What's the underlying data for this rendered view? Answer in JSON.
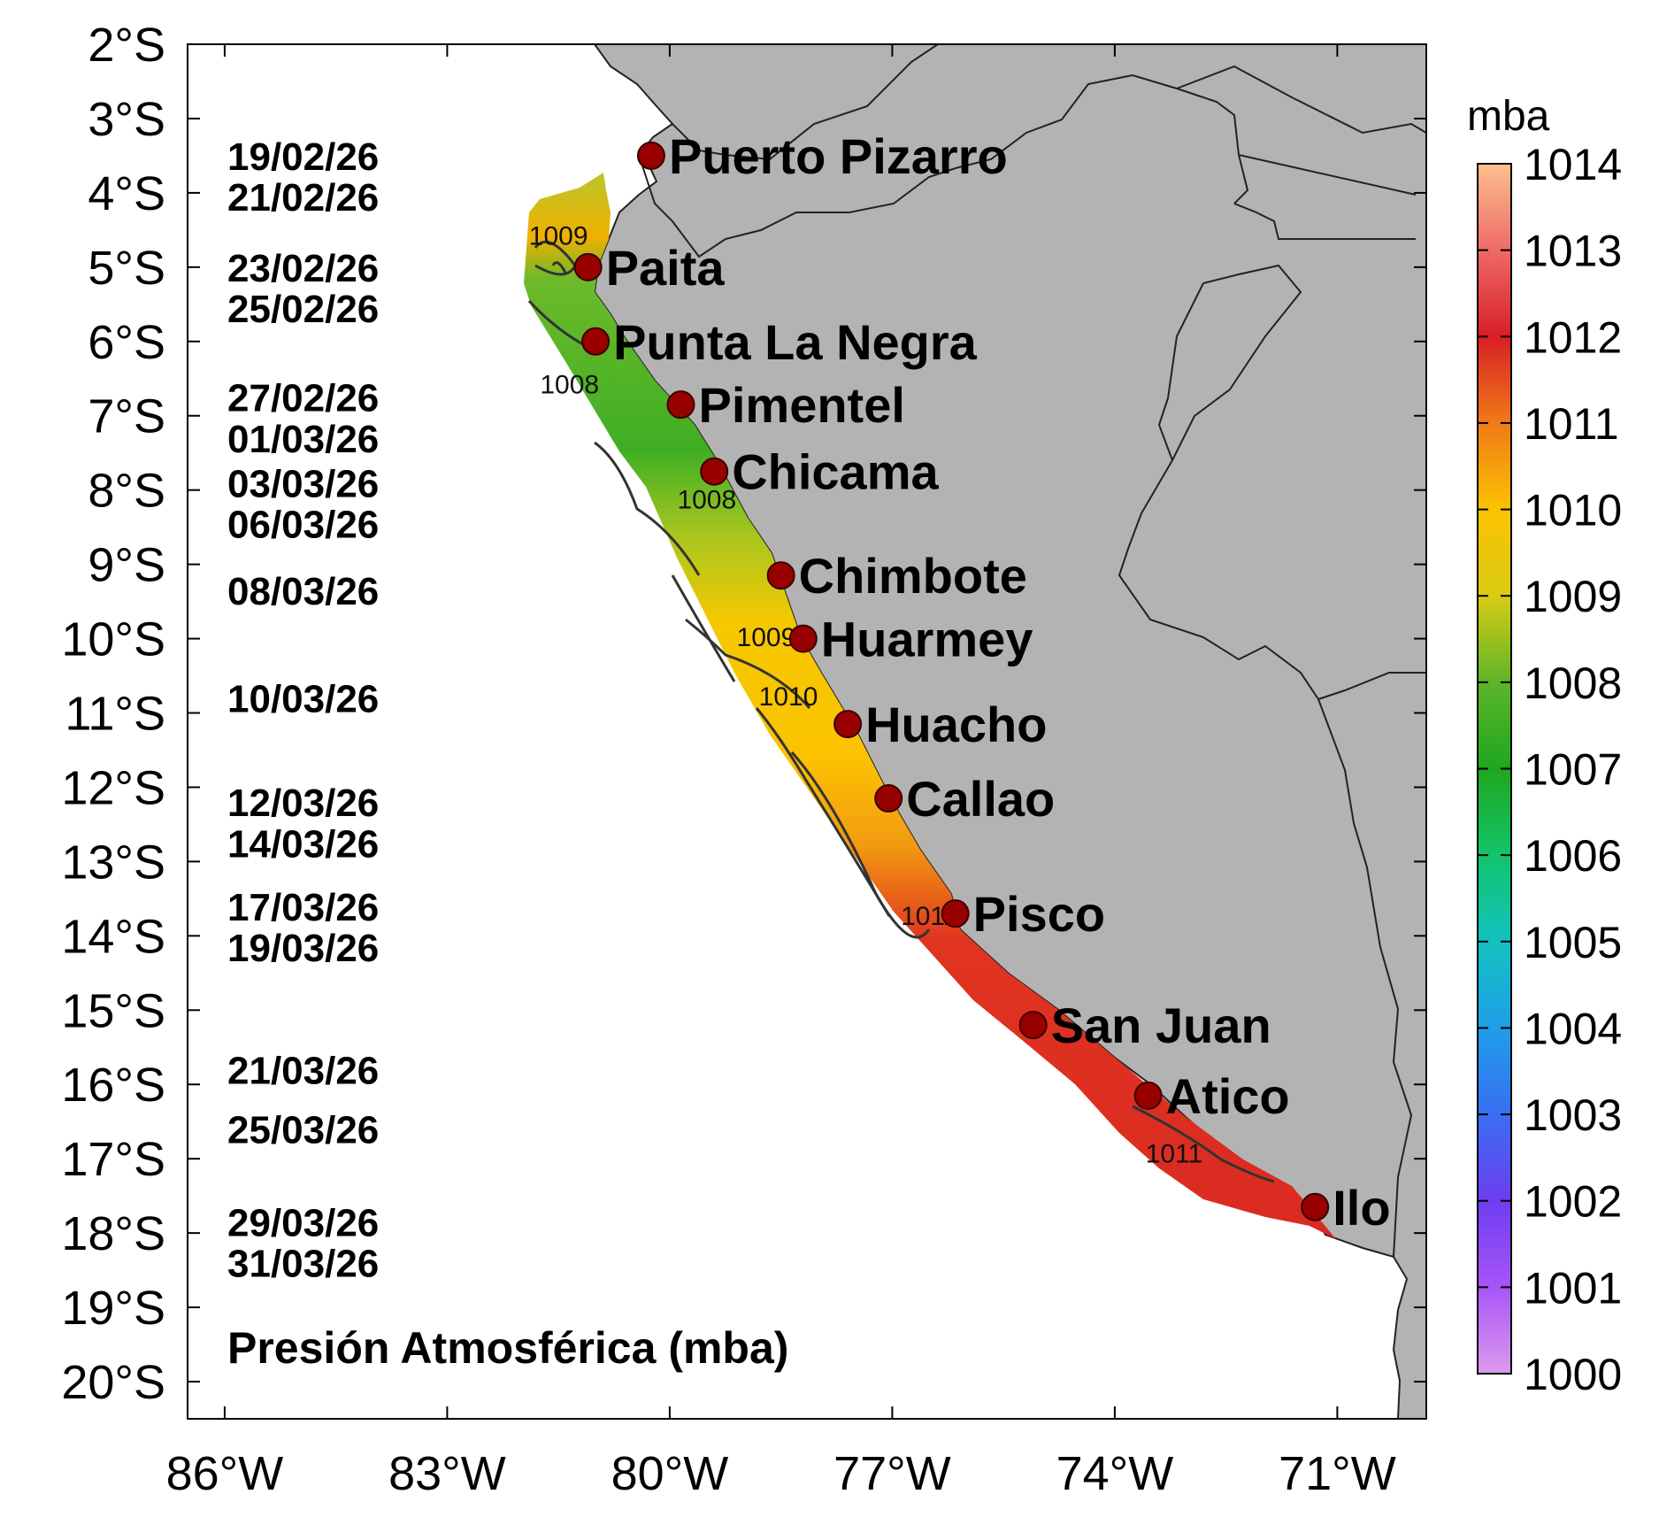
{
  "map": {
    "title": "Presión Atmosférica (mba)",
    "lon_ticks": [
      {
        "lon": -86,
        "label": "86°W"
      },
      {
        "lon": -83,
        "label": "83°W"
      },
      {
        "lon": -80,
        "label": "80°W"
      },
      {
        "lon": -77,
        "label": "77°W"
      },
      {
        "lon": -74,
        "label": "74°W"
      },
      {
        "lon": -71,
        "label": "71°W"
      }
    ],
    "lat_ticks": [
      {
        "lat": -2,
        "label": "2°S"
      },
      {
        "lat": -3,
        "label": "3°S"
      },
      {
        "lat": -4,
        "label": "4°S"
      },
      {
        "lat": -5,
        "label": "5°S"
      },
      {
        "lat": -6,
        "label": "6°S"
      },
      {
        "lat": -7,
        "label": "7°S"
      },
      {
        "lat": -8,
        "label": "8°S"
      },
      {
        "lat": -9,
        "label": "9°S"
      },
      {
        "lat": -10,
        "label": "10°S"
      },
      {
        "lat": -11,
        "label": "11°S"
      },
      {
        "lat": -12,
        "label": "12°S"
      },
      {
        "lat": -13,
        "label": "13°S"
      },
      {
        "lat": -14,
        "label": "14°S"
      },
      {
        "lat": -15,
        "label": "15°S"
      },
      {
        "lat": -16,
        "label": "16°S"
      },
      {
        "lat": -17,
        "label": "17°S"
      },
      {
        "lat": -18,
        "label": "18°S"
      },
      {
        "lat": -19,
        "label": "19°S"
      },
      {
        "lat": -20,
        "label": "20°S"
      }
    ],
    "lon_range": [
      -86.5,
      -69.8
    ],
    "lat_range": [
      -20.5,
      -2.0
    ],
    "land_color": "#b3b3b3",
    "station_color": "#990000"
  },
  "dates": [
    {
      "text": "19/02/26",
      "lat": -3.5
    },
    {
      "text": "21/02/26",
      "lat": -4.05
    },
    {
      "text": "23/02/26",
      "lat": -5.0
    },
    {
      "text": "25/02/26",
      "lat": -5.55
    },
    {
      "text": "27/02/26",
      "lat": -6.75
    },
    {
      "text": "01/03/26",
      "lat": -7.3
    },
    {
      "text": "03/03/26",
      "lat": -7.9
    },
    {
      "text": "06/03/26",
      "lat": -8.45
    },
    {
      "text": "08/03/26",
      "lat": -9.35
    },
    {
      "text": "10/03/26",
      "lat": -10.8
    },
    {
      "text": "12/03/26",
      "lat": -12.2
    },
    {
      "text": "14/03/26",
      "lat": -12.75
    },
    {
      "text": "17/03/26",
      "lat": -13.6
    },
    {
      "text": "19/03/26",
      "lat": -14.15
    },
    {
      "text": "21/03/26",
      "lat": -15.8
    },
    {
      "text": "25/03/26",
      "lat": -16.6
    },
    {
      "text": "29/03/26",
      "lat": -17.85
    },
    {
      "text": "31/03/26",
      "lat": -18.4
    }
  ],
  "stations": [
    {
      "name": "Puerto Pizarro",
      "lon": -80.25,
      "lat": -3.5
    },
    {
      "name": "Paita",
      "lon": -81.1,
      "lat": -5.0
    },
    {
      "name": "Punta La Negra",
      "lon": -81.0,
      "lat": -6.0
    },
    {
      "name": "Pimentel",
      "lon": -79.85,
      "lat": -6.85
    },
    {
      "name": "Chicama",
      "lon": -79.4,
      "lat": -7.75
    },
    {
      "name": "Chimbote",
      "lon": -78.5,
      "lat": -9.15
    },
    {
      "name": "Huarmey",
      "lon": -78.2,
      "lat": -10.0
    },
    {
      "name": "Huacho",
      "lon": -77.6,
      "lat": -11.15
    },
    {
      "name": "Callao",
      "lon": -77.05,
      "lat": -12.15
    },
    {
      "name": "Pisco",
      "lon": -76.15,
      "lat": -13.7
    },
    {
      "name": "San Juan",
      "lon": -75.1,
      "lat": -15.2
    },
    {
      "name": "Atico",
      "lon": -73.55,
      "lat": -16.15
    },
    {
      "name": "Ilo",
      "lon": -71.3,
      "lat": -17.65
    }
  ],
  "contour_labels": [
    {
      "text": "1009",
      "lon": -81.5,
      "lat": -4.7
    },
    {
      "text": "1008",
      "lon": -81.35,
      "lat": -6.7
    },
    {
      "text": "1008",
      "lon": -79.5,
      "lat": -8.25
    },
    {
      "text": "1009",
      "lon": -78.7,
      "lat": -10.1
    },
    {
      "text": "1010",
      "lon": -78.4,
      "lat": -10.9
    },
    {
      "text": "1011",
      "lon": -76.5,
      "lat": -13.85
    },
    {
      "text": "1011",
      "lon": -73.2,
      "lat": -17.05
    }
  ],
  "colorbar": {
    "unit": "mba",
    "min": 1000,
    "max": 1014,
    "ticks": [
      "1014",
      "1013",
      "1012",
      "1011",
      "1010",
      "1009",
      "1008",
      "1007",
      "1006",
      "1005",
      "1004",
      "1003",
      "1002",
      "1001",
      "1000"
    ],
    "stops": [
      {
        "value": 1000,
        "color": "#dd99ee"
      },
      {
        "value": 1001,
        "color": "#a855f7"
      },
      {
        "value": 1002,
        "color": "#6d3df0"
      },
      {
        "value": 1003,
        "color": "#3a6ef2"
      },
      {
        "value": 1004,
        "color": "#1f9ee8"
      },
      {
        "value": 1005,
        "color": "#13c2c0"
      },
      {
        "value": 1006,
        "color": "#12c46a"
      },
      {
        "value": 1007,
        "color": "#1fa620"
      },
      {
        "value": 1008,
        "color": "#5db529"
      },
      {
        "value": 1009,
        "color": "#d9cc14"
      },
      {
        "value": 1010,
        "color": "#fcc200"
      },
      {
        "value": 1011,
        "color": "#f07a18"
      },
      {
        "value": 1012,
        "color": "#d81f26"
      },
      {
        "value": 1013,
        "color": "#ee6a6a"
      },
      {
        "value": 1014,
        "color": "#fdbf8c"
      }
    ]
  }
}
